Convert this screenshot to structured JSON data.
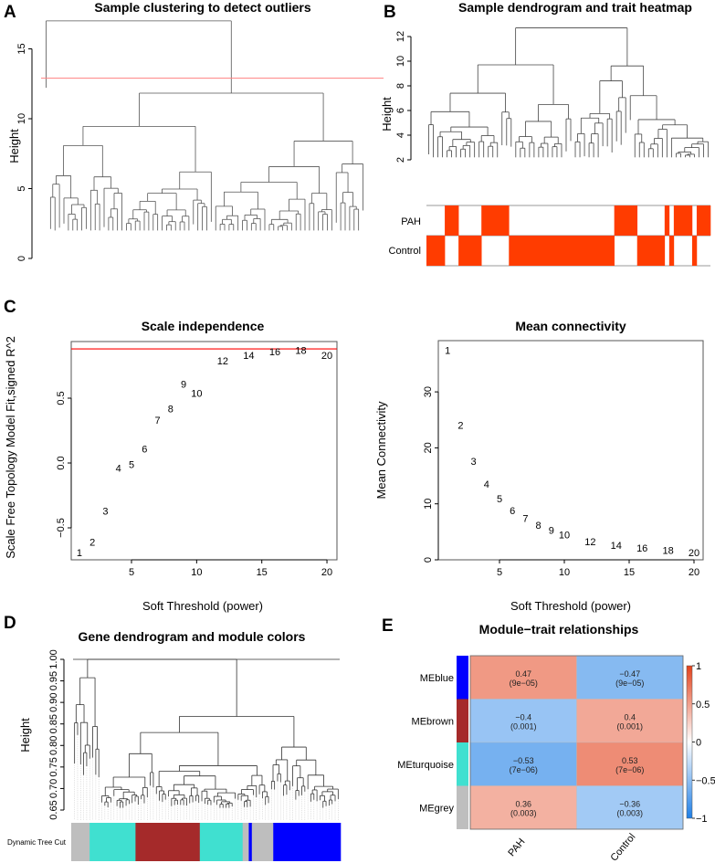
{
  "panels": {
    "A": {
      "letter": "A",
      "title": "Sample clustering to detect outliers",
      "ylabel": "Height",
      "yticks": [
        "0",
        "5",
        "10",
        "15"
      ],
      "cut_height": 12.9,
      "top_height": 17
    },
    "B": {
      "letter": "B",
      "title": "Sample dendrogram and trait heatmap",
      "ylabel": "Height",
      "yticks": [
        "2",
        "4",
        "6",
        "8",
        "10",
        "12"
      ],
      "top_height": 12.7,
      "traits": [
        "PAH",
        "Control"
      ],
      "trait_runs": [
        {
          "trait": "Control",
          "n": 4
        },
        {
          "trait": "PAH",
          "n": 3
        },
        {
          "trait": "Control",
          "n": 5
        },
        {
          "trait": "PAH",
          "n": 6
        },
        {
          "trait": "Control",
          "n": 23
        },
        {
          "trait": "PAH",
          "n": 5
        },
        {
          "trait": "Control",
          "n": 6
        },
        {
          "trait": "PAH",
          "n": 1
        },
        {
          "trait": "Control",
          "n": 1
        },
        {
          "trait": "PAH",
          "n": 4
        },
        {
          "trait": "Control",
          "n": 1
        },
        {
          "trait": "PAH",
          "n": 3
        }
      ],
      "trait_color": "#ff3c00"
    },
    "C": {
      "letter": "C"
    },
    "D": {
      "letter": "D",
      "title": "Gene dendrogram and module colors",
      "ylabel": "Height",
      "yticks": [
        "0.65",
        "0.70",
        "0.75",
        "0.80",
        "0.85",
        "0.90",
        "0.95",
        "1.00"
      ],
      "colorbar_label": "Dynamic Tree Cut",
      "module_runs": [
        {
          "color": "grey",
          "hex": "#bebebe",
          "n": 6
        },
        {
          "color": "turquoise",
          "hex": "#40e0d0",
          "n": 15
        },
        {
          "color": "brown",
          "hex": "#a52a2a",
          "n": 21
        },
        {
          "color": "turquoise",
          "hex": "#40e0d0",
          "n": 14
        },
        {
          "color": "grey",
          "hex": "#bebebe",
          "n": 2
        },
        {
          "color": "blue",
          "hex": "#0000ff",
          "n": 1
        },
        {
          "color": "grey",
          "hex": "#bebebe",
          "n": 7
        },
        {
          "color": "blue",
          "hex": "#0000ff",
          "n": 22
        }
      ]
    },
    "E": {
      "letter": "E",
      "title": "Module−trait relationships",
      "colorbar_ticks": [
        "1",
        "0.5",
        "0",
        "−0.5",
        "−1"
      ]
    }
  },
  "chart_data": [
    {
      "type": "scatter",
      "title": "Scale independence",
      "xlabel": "Soft Threshold (power)",
      "ylabel": "Scale Free Topology Model Fit,signed R^2",
      "xticks": [
        "5",
        "10",
        "15",
        "20"
      ],
      "yticks": [
        "−0.5",
        "0.0",
        "0.5"
      ],
      "xlim": [
        1,
        20
      ],
      "ylim": [
        -0.75,
        0.92
      ],
      "reference_line": {
        "y": 0.88,
        "color": "#ff0000"
      },
      "x": [
        1,
        2,
        3,
        4,
        5,
        6,
        7,
        8,
        9,
        10,
        12,
        14,
        16,
        18,
        20
      ],
      "y": [
        -0.69,
        -0.61,
        -0.37,
        -0.04,
        -0.01,
        0.11,
        0.33,
        0.42,
        0.61,
        0.54,
        0.79,
        0.83,
        0.86,
        0.87,
        0.83
      ]
    },
    {
      "type": "scatter",
      "title": "Mean connectivity",
      "xlabel": "Soft Threshold (power)",
      "ylabel": "Mean Connectivity",
      "xticks": [
        "5",
        "10",
        "15",
        "20"
      ],
      "yticks": [
        "0",
        "10",
        "20",
        "30"
      ],
      "xlim": [
        1,
        20
      ],
      "ylim": [
        0,
        38
      ],
      "x": [
        1,
        2,
        3,
        4,
        5,
        6,
        7,
        8,
        9,
        10,
        12,
        14,
        16,
        18,
        20
      ],
      "y": [
        37.4,
        24.1,
        17.6,
        13.5,
        10.9,
        8.8,
        7.4,
        6.2,
        5.3,
        4.5,
        3.3,
        2.6,
        2.1,
        1.7,
        1.3
      ]
    },
    {
      "type": "heatmap",
      "title": "Module−trait relationships",
      "columns": [
        "PAH",
        "Control"
      ],
      "rows": [
        {
          "name": "MEblue",
          "color": "#0000ff",
          "values": [
            0.47,
            -0.47
          ],
          "labels": [
            "0.47",
            "−0.47"
          ],
          "pvalues": [
            "(9e−05)",
            "(9e−05)"
          ]
        },
        {
          "name": "MEbrown",
          "color": "#a52a2a",
          "values": [
            -0.4,
            0.4
          ],
          "labels": [
            "−0.4",
            "0.4"
          ],
          "pvalues": [
            "(0.001)",
            "(0.001)"
          ]
        },
        {
          "name": "MEturquoise",
          "color": "#40e0d0",
          "values": [
            -0.53,
            0.53
          ],
          "labels": [
            "−0.53",
            "0.53"
          ],
          "pvalues": [
            "(7e−06)",
            "(7e−06)"
          ]
        },
        {
          "name": "MEgrey",
          "color": "#bebebe",
          "values": [
            0.36,
            -0.36
          ],
          "labels": [
            "0.36",
            "−0.36"
          ],
          "pvalues": [
            "(0.003)",
            "(0.003)"
          ]
        }
      ],
      "colorscale": {
        "min": -1,
        "max": 1,
        "low": "#1f7fe6",
        "mid": "#ffffff",
        "high": "#e3421c"
      }
    }
  ]
}
